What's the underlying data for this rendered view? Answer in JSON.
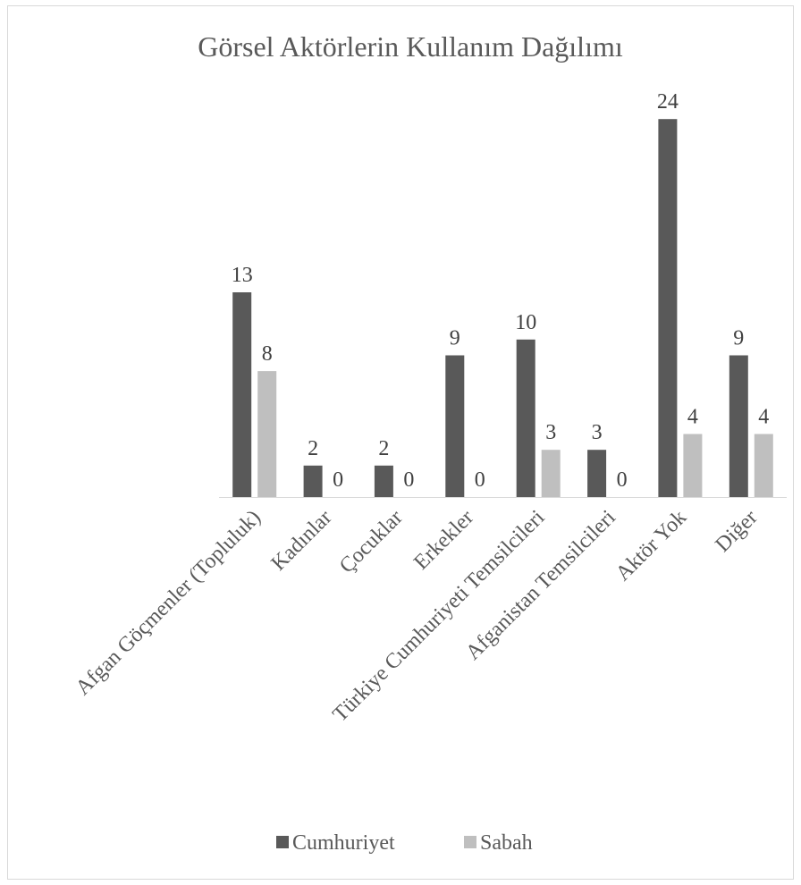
{
  "chart_data": {
    "type": "bar",
    "title": "Görsel Aktörlerin Kullanım Dağılımı",
    "xlabel": "",
    "ylabel": "",
    "ylim": [
      0,
      26
    ],
    "grid": false,
    "legend_position": "bottom",
    "categories": [
      "Afgan Göçmenler (Topluluk)",
      "Kadınlar",
      "Çocuklar",
      "Erkekler",
      "Türkiye Cumhuriyeti Temsilcileri",
      "Afganistan Temsilcileri",
      "Aktör Yok",
      "Diğer"
    ],
    "series": [
      {
        "name": "Cumhuriyet",
        "color": "#595959",
        "values": [
          13,
          2,
          2,
          9,
          10,
          3,
          24,
          9
        ]
      },
      {
        "name": "Sabah",
        "color": "#bfbfbf",
        "values": [
          8,
          0,
          0,
          0,
          3,
          0,
          4,
          4
        ]
      }
    ]
  }
}
